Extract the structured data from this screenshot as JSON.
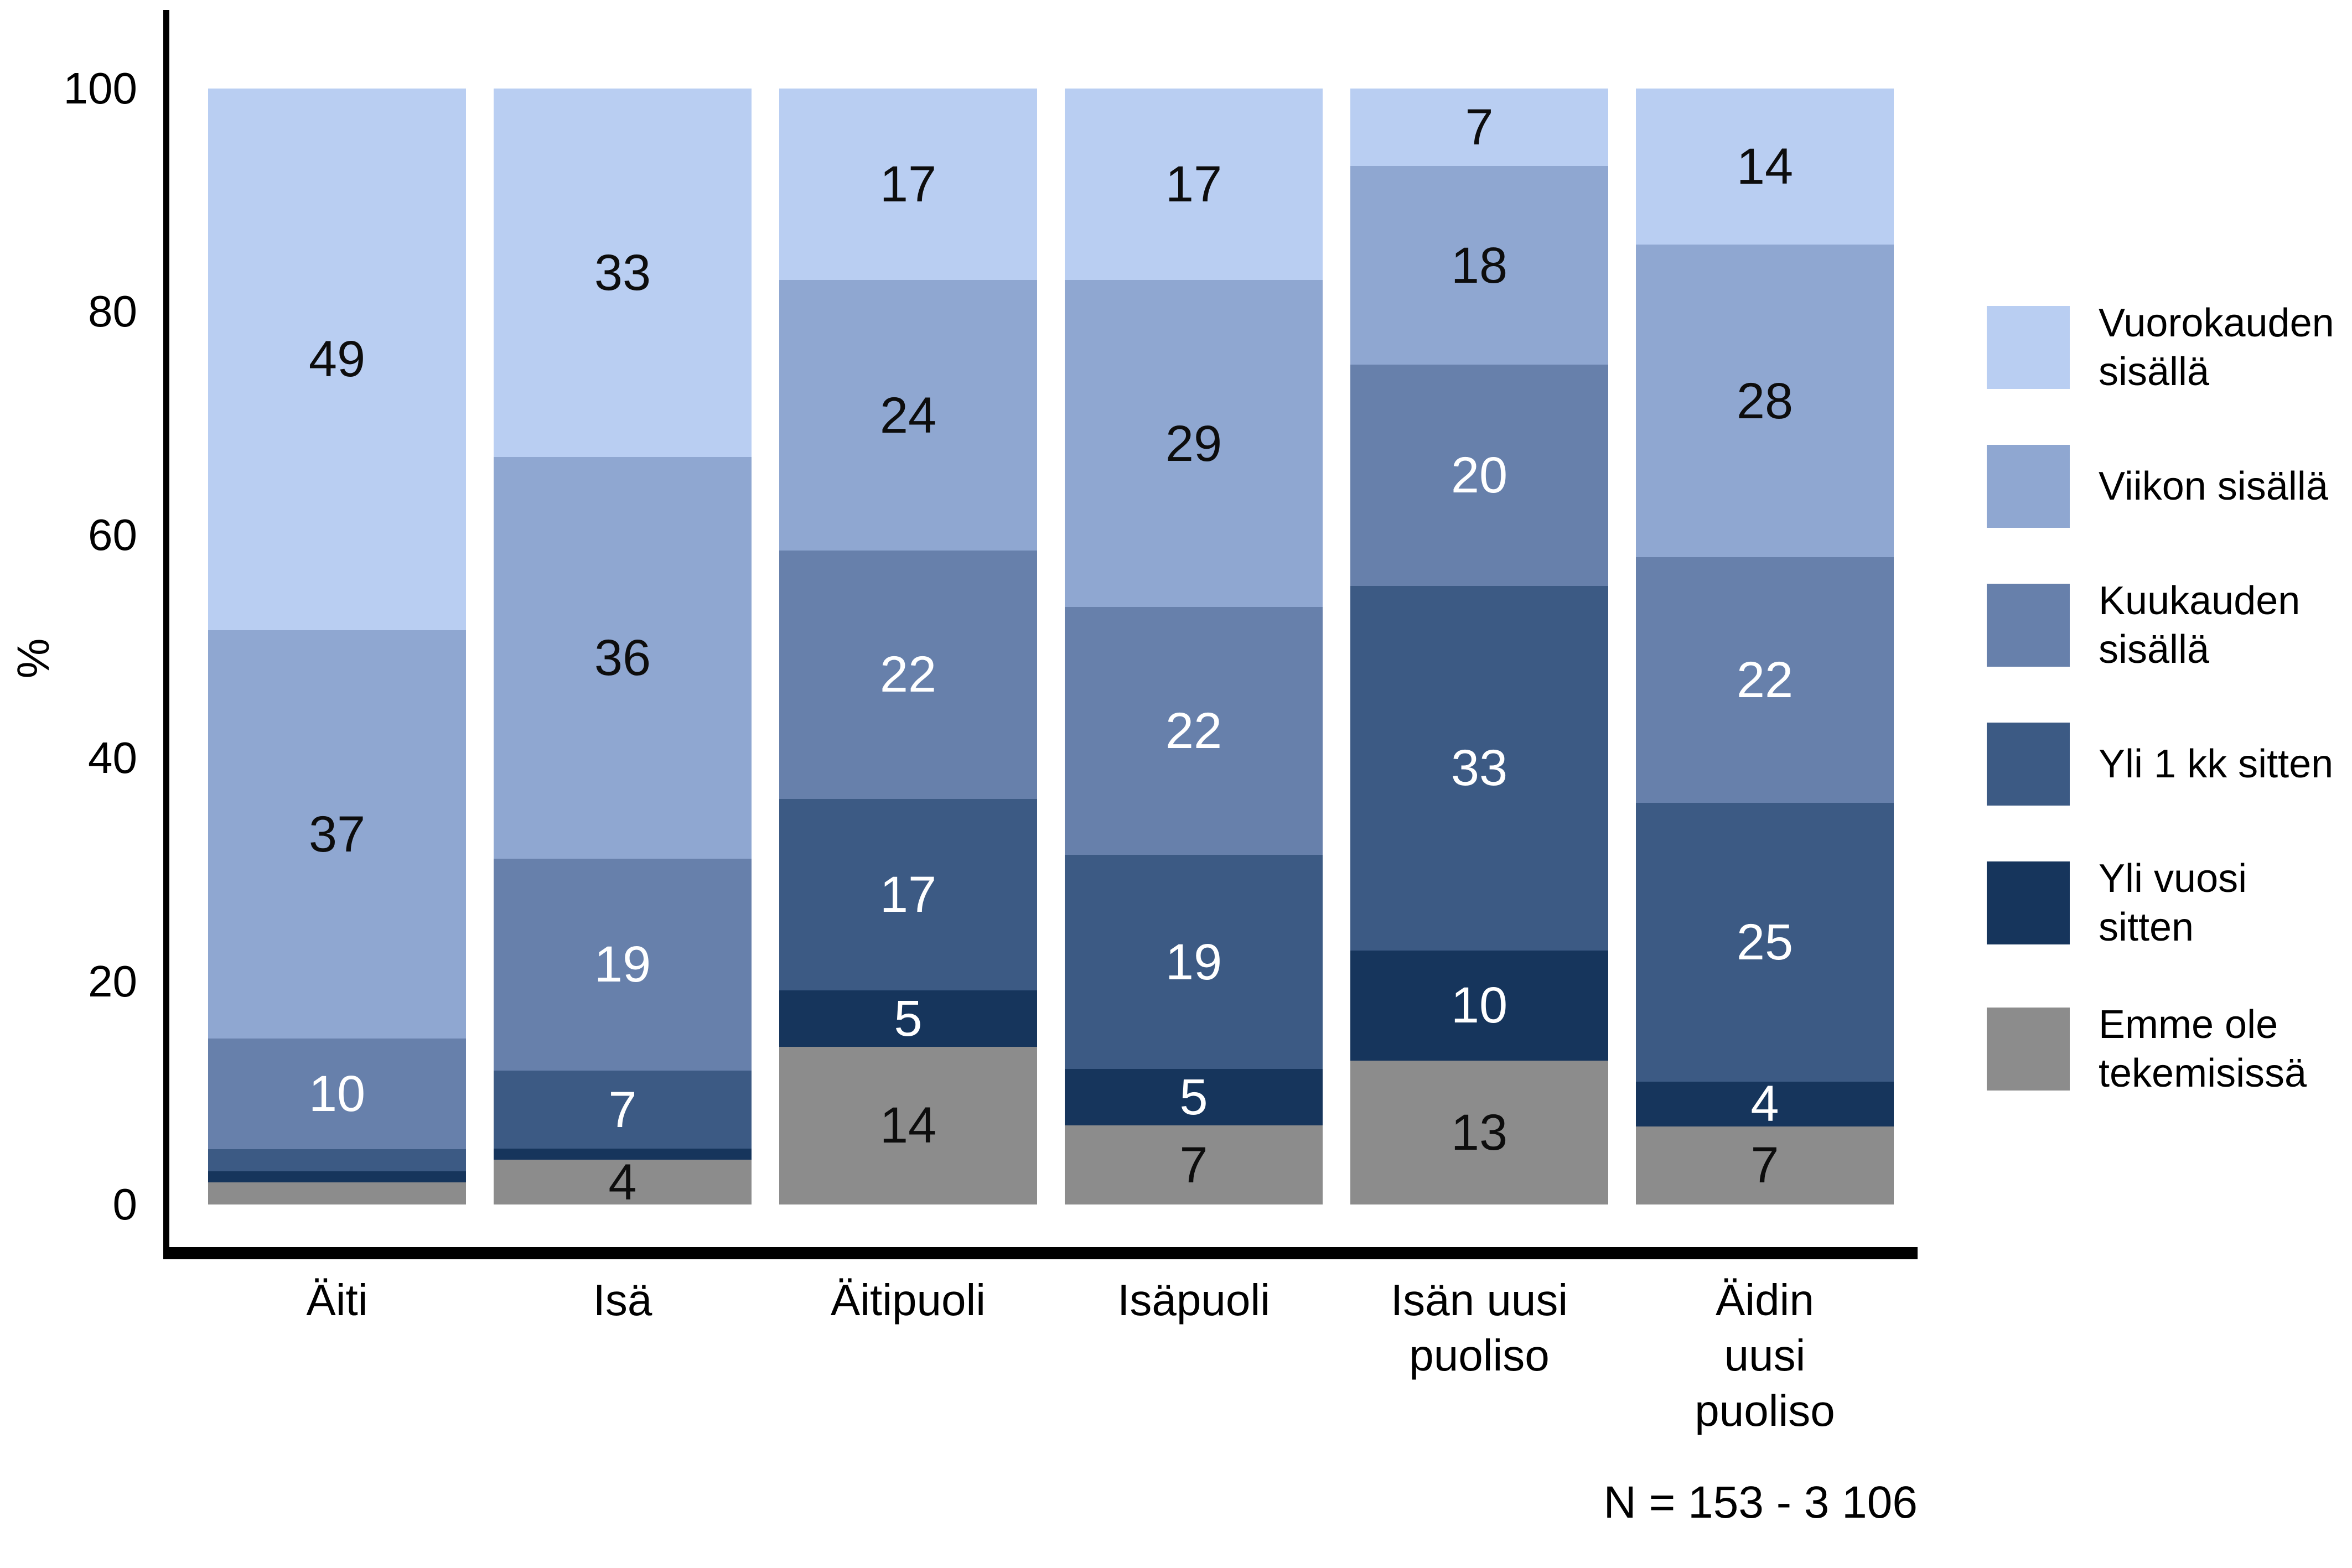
{
  "chart_data": {
    "type": "bar",
    "stacked": true,
    "orientation": "vertical",
    "title": "",
    "ylabel": "%",
    "xlabel": "",
    "ylim": [
      0,
      100
    ],
    "y_ticks": [
      0,
      20,
      40,
      60,
      80,
      100
    ],
    "grid": false,
    "legend_position": "right",
    "label_min_value_shown": 4,
    "footnote": "N = 153 - 3 106",
    "categories": [
      "Äiti",
      "Isä",
      "Äitipuoli",
      "Isäpuoli",
      "Isän uusi puoliso",
      "Äidin uusi puoliso"
    ],
    "category_label_lines": [
      [
        "Äiti"
      ],
      [
        "Isä"
      ],
      [
        "Äitipuoli"
      ],
      [
        "Isäpuoli"
      ],
      [
        "Isän uusi",
        "puoliso"
      ],
      [
        "Äidin",
        "uusi",
        "puoliso"
      ]
    ],
    "series": [
      {
        "name": "Vuorokauden sisällä",
        "legend_lines": [
          "Vuorokauden",
          "sisällä"
        ],
        "color": "#b9cef2",
        "label_color": "#0d0d0d",
        "values": [
          49,
          33,
          17,
          17,
          7,
          14
        ]
      },
      {
        "name": "Viikon sisällä",
        "legend_lines": [
          "Viikon sisällä"
        ],
        "color": "#8fa7d1",
        "label_color": "#0d0d0d",
        "values": [
          37,
          36,
          24,
          29,
          18,
          28
        ]
      },
      {
        "name": "Kuukauden sisällä",
        "legend_lines": [
          "Kuukauden",
          "sisällä"
        ],
        "color": "#6780ab",
        "label_color": "#ffffff",
        "values": [
          10,
          19,
          22,
          22,
          20,
          22
        ]
      },
      {
        "name": "Yli 1 kk sitten",
        "legend_lines": [
          "Yli 1 kk sitten"
        ],
        "color": "#3c5a84",
        "label_color": "#ffffff",
        "values": [
          2,
          7,
          17,
          19,
          33,
          25
        ]
      },
      {
        "name": "Yli vuosi sitten",
        "legend_lines": [
          "Yli vuosi",
          "sitten"
        ],
        "color": "#16355c",
        "label_color": "#ffffff",
        "values": [
          1,
          1,
          5,
          5,
          10,
          4
        ]
      },
      {
        "name": "Emme ole tekemisissä",
        "legend_lines": [
          "Emme ole",
          "tekemisissä"
        ],
        "color": "#8c8c8c",
        "label_color": "#0d0d0d",
        "values": [
          2,
          4,
          14,
          7,
          13,
          7
        ]
      }
    ]
  }
}
